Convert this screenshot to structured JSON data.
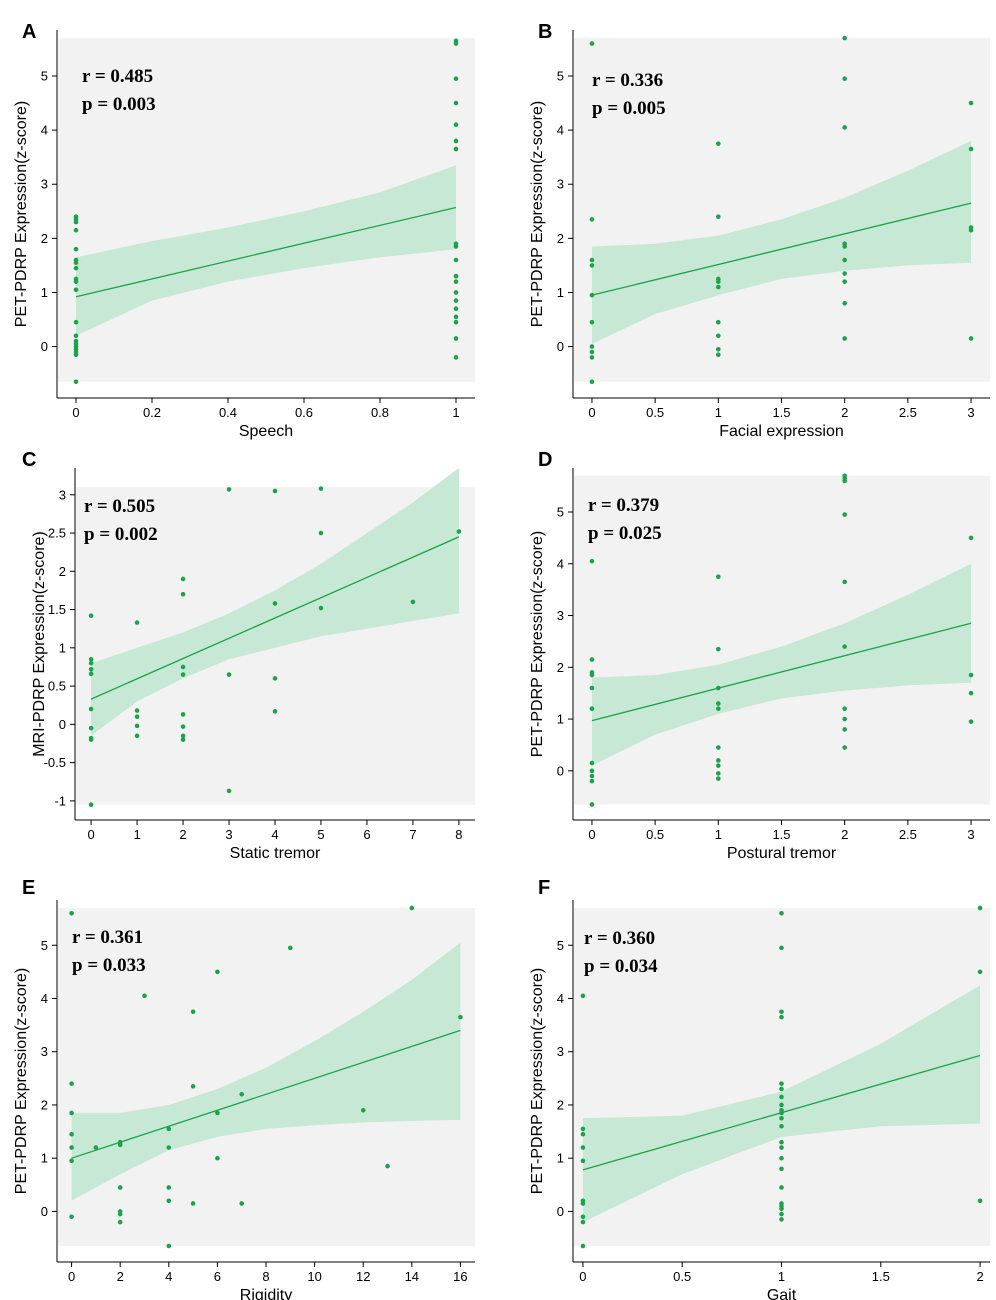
{
  "chart_data": [
    {
      "id": "A",
      "type": "scatter",
      "xlabel": "Speech",
      "ylabel": "PET-PDRP Expression(z-score)",
      "xlim": [
        -0.05,
        1.05
      ],
      "ylim": [
        -0.95,
        5.85
      ],
      "xticks": [
        0,
        0.2,
        0.4,
        0.6,
        0.8,
        1
      ],
      "xtick_labels": [
        "0",
        "0.2",
        "0.4",
        "0.6",
        "0.8",
        "1"
      ],
      "yticks": [
        0,
        1,
        2,
        3,
        4,
        5
      ],
      "ytick_labels": [
        "0",
        "1",
        "2",
        "3",
        "4",
        "5"
      ],
      "bg_range": [
        -0.65,
        5.7
      ],
      "r_text": "r = 0.485",
      "p_text": "p = 0.003",
      "fit": {
        "x": [
          0,
          1
        ],
        "y": [
          0.92,
          2.57
        ]
      },
      "ci": {
        "x": [
          0,
          0.2,
          0.4,
          0.6,
          0.8,
          1
        ],
        "upper": [
          1.65,
          1.95,
          2.2,
          2.5,
          2.85,
          3.35
        ],
        "lower": [
          0.2,
          0.85,
          1.2,
          1.45,
          1.65,
          1.8
        ]
      },
      "points": {
        "x": [
          0,
          0,
          0,
          0,
          0,
          0,
          0,
          0,
          0,
          0,
          0,
          0,
          0,
          0,
          0,
          0,
          0,
          0,
          0,
          0,
          1,
          1,
          1,
          1,
          1,
          1,
          1,
          1,
          1,
          1,
          1,
          1,
          1,
          1,
          1,
          1,
          1,
          1,
          1
        ],
        "y": [
          2.4,
          2.3,
          2.15,
          1.8,
          1.55,
          1.45,
          1.25,
          1.2,
          1.05,
          0.45,
          0.2,
          0.1,
          0.05,
          0,
          -0.05,
          -0.1,
          -0.15,
          -0.65,
          2.35,
          1.6,
          5.65,
          5.6,
          4.95,
          4.5,
          4.1,
          3.8,
          3.65,
          1.9,
          1.85,
          1.6,
          1.3,
          1,
          0.85,
          0.7,
          0.45,
          0.15,
          -0.2,
          1.2,
          0.55
        ]
      }
    },
    {
      "id": "B",
      "type": "scatter",
      "xlabel": "Facial expression",
      "ylabel": "PET-PDRP Expression(z-score)",
      "xlim": [
        -0.15,
        3.15
      ],
      "ylim": [
        -0.95,
        5.85
      ],
      "xticks": [
        0,
        0.5,
        1,
        1.5,
        2,
        2.5,
        3
      ],
      "xtick_labels": [
        "0",
        "0.5",
        "1",
        "1.5",
        "2",
        "2.5",
        "3"
      ],
      "yticks": [
        0,
        1,
        2,
        3,
        4,
        5
      ],
      "ytick_labels": [
        "0",
        "1",
        "2",
        "3",
        "4",
        "5"
      ],
      "bg_range": [
        -0.65,
        5.7
      ],
      "r_text": "r = 0.336",
      "p_text": "p = 0.005",
      "fit": {
        "x": [
          0,
          3
        ],
        "y": [
          0.95,
          2.65
        ]
      },
      "ci": {
        "x": [
          0,
          0.5,
          1,
          1.5,
          2,
          2.5,
          3
        ],
        "upper": [
          1.85,
          1.9,
          2.05,
          2.35,
          2.75,
          3.25,
          3.8
        ],
        "lower": [
          0.05,
          0.6,
          0.95,
          1.25,
          1.4,
          1.5,
          1.55
        ]
      },
      "points": {
        "x": [
          0,
          0,
          0,
          0,
          0,
          0,
          0,
          0,
          0,
          0,
          1,
          1,
          1,
          1,
          1,
          1,
          1,
          1,
          1,
          2,
          2,
          2,
          2,
          2,
          2,
          2,
          2,
          2,
          2,
          3,
          3,
          3,
          3,
          3
        ],
        "y": [
          5.6,
          2.35,
          1.6,
          1.5,
          0.95,
          0.45,
          0,
          -0.1,
          -0.2,
          -0.65,
          3.75,
          2.4,
          1.25,
          1.2,
          1.1,
          0.45,
          0.2,
          -0.05,
          -0.15,
          5.7,
          4.95,
          4.05,
          1.9,
          1.85,
          1.6,
          1.35,
          1.2,
          0.8,
          0.15,
          4.5,
          3.65,
          2.2,
          2.15,
          0.15
        ]
      }
    },
    {
      "id": "C",
      "type": "scatter",
      "xlabel": "Static tremor",
      "ylabel": "MRI-PDRP Expression(z-score)",
      "xlim": [
        -0.35,
        8.35
      ],
      "ylim": [
        -1.25,
        3.35
      ],
      "xticks": [
        0,
        1,
        2,
        3,
        4,
        5,
        6,
        7,
        8
      ],
      "xtick_labels": [
        "0",
        "1",
        "2",
        "3",
        "4",
        "5",
        "6",
        "7",
        "8"
      ],
      "yticks": [
        -1,
        -0.5,
        0,
        0.5,
        1,
        1.5,
        2,
        2.5,
        3
      ],
      "ytick_labels": [
        "-1",
        "-0.5",
        "0",
        "0.5",
        "1",
        "1.5",
        "2",
        "2.5",
        "3"
      ],
      "bg_range": [
        -1.05,
        3.1
      ],
      "r_text": "r = 0.505",
      "p_text": "p = 0.002",
      "fit": {
        "x": [
          0,
          8
        ],
        "y": [
          0.33,
          2.45
        ]
      },
      "ci": {
        "x": [
          0,
          1,
          2,
          3,
          4,
          5,
          6,
          7,
          8
        ],
        "upper": [
          0.8,
          1.0,
          1.2,
          1.45,
          1.75,
          2.1,
          2.5,
          2.9,
          3.35
        ],
        "lower": [
          -0.15,
          0.3,
          0.6,
          0.85,
          1.0,
          1.15,
          1.25,
          1.35,
          1.45
        ]
      },
      "points": {
        "x": [
          0,
          0,
          0,
          0,
          0,
          0,
          0,
          0,
          0,
          0,
          1,
          1,
          1,
          1,
          1,
          2,
          2,
          2,
          2,
          2,
          2,
          2,
          2,
          3,
          3,
          3,
          4,
          4,
          4,
          4,
          5,
          5,
          5,
          7,
          8
        ],
        "y": [
          1.42,
          0.85,
          0.8,
          0.72,
          0.66,
          0.2,
          -0.05,
          -0.18,
          -0.2,
          -1.05,
          1.33,
          0.18,
          -0.02,
          -0.15,
          0.1,
          1.9,
          1.7,
          0.75,
          0.65,
          0.13,
          -0.03,
          -0.15,
          -0.2,
          3.07,
          0.65,
          -0.87,
          3.05,
          1.58,
          0.6,
          0.17,
          3.08,
          2.5,
          1.52,
          1.6,
          2.52
        ]
      }
    },
    {
      "id": "D",
      "type": "scatter",
      "xlabel": "Postural tremor",
      "ylabel": "PET-PDRP Expression(z-score)",
      "xlim": [
        -0.15,
        3.15
      ],
      "ylim": [
        -0.95,
        5.85
      ],
      "xticks": [
        0,
        0.5,
        1,
        1.5,
        2,
        2.5,
        3
      ],
      "xtick_labels": [
        "0",
        "0.5",
        "1",
        "1.5",
        "2",
        "2.5",
        "3"
      ],
      "yticks": [
        0,
        1,
        2,
        3,
        4,
        5
      ],
      "ytick_labels": [
        "0",
        "1",
        "2",
        "3",
        "4",
        "5"
      ],
      "bg_range": [
        -0.65,
        5.7
      ],
      "r_text": "r = 0.379",
      "p_text": "p = 0.025",
      "fit": {
        "x": [
          0,
          3
        ],
        "y": [
          0.97,
          2.85
        ]
      },
      "ci": {
        "x": [
          0,
          0.5,
          1,
          1.5,
          2,
          2.5,
          3
        ],
        "upper": [
          1.8,
          1.85,
          2.05,
          2.4,
          2.85,
          3.4,
          4.0
        ],
        "lower": [
          0.1,
          0.7,
          1.1,
          1.4,
          1.55,
          1.65,
          1.7
        ]
      },
      "points": {
        "x": [
          0,
          0,
          0,
          0,
          0,
          0,
          0,
          0,
          0,
          0,
          0,
          1,
          1,
          1,
          1,
          1,
          1,
          1,
          1,
          1,
          1,
          2,
          2,
          2,
          2,
          2,
          2,
          2,
          2,
          2,
          2,
          3,
          3,
          3,
          3
        ],
        "y": [
          4.05,
          2.15,
          1.9,
          1.85,
          1.6,
          1.2,
          0.15,
          0,
          -0.1,
          -0.2,
          -0.65,
          3.75,
          2.35,
          1.6,
          1.3,
          1.2,
          0.45,
          0.2,
          -0.05,
          -0.15,
          0.1,
          5.7,
          5.65,
          4.95,
          3.65,
          2.4,
          1.2,
          1.0,
          0.8,
          0.45,
          5.6,
          4.5,
          1.85,
          1.5,
          0.95
        ]
      }
    },
    {
      "id": "E",
      "type": "scatter",
      "xlabel": "Rigidity",
      "ylabel": "PET-PDRP Expression(z-score)",
      "xlim": [
        -0.6,
        16.6
      ],
      "ylim": [
        -0.95,
        5.85
      ],
      "xticks": [
        0,
        2,
        4,
        6,
        8,
        10,
        12,
        14,
        16
      ],
      "xtick_labels": [
        "0",
        "2",
        "4",
        "6",
        "8",
        "10",
        "12",
        "14",
        "16"
      ],
      "yticks": [
        0,
        1,
        2,
        3,
        4,
        5
      ],
      "ytick_labels": [
        "0",
        "1",
        "2",
        "3",
        "4",
        "5"
      ],
      "bg_range": [
        -0.65,
        5.7
      ],
      "r_text": "r = 0.361",
      "p_text": "p = 0.033",
      "fit": {
        "x": [
          0,
          16
        ],
        "y": [
          1.0,
          3.4
        ]
      },
      "ci": {
        "x": [
          0,
          2,
          4,
          6,
          8,
          10,
          12,
          14,
          16
        ],
        "upper": [
          1.85,
          1.85,
          2.0,
          2.3,
          2.7,
          3.2,
          3.75,
          4.35,
          5.05
        ],
        "lower": [
          0.2,
          0.7,
          1.15,
          1.4,
          1.55,
          1.62,
          1.67,
          1.7,
          1.72
        ]
      },
      "points": {
        "x": [
          0,
          0,
          0,
          0,
          0,
          0,
          0,
          1,
          2,
          2,
          2,
          2,
          2,
          2,
          3,
          4,
          4,
          4,
          4,
          4,
          5,
          5,
          5,
          6,
          6,
          6,
          7,
          7,
          9,
          12,
          13,
          14,
          16
        ],
        "y": [
          5.6,
          2.4,
          1.85,
          1.45,
          1.2,
          0.95,
          -0.1,
          1.2,
          1.3,
          1.25,
          0.45,
          0,
          -0.05,
          -0.2,
          4.05,
          1.55,
          1.2,
          0.45,
          0.2,
          -0.65,
          3.75,
          2.35,
          0.15,
          4.5,
          1.85,
          1.0,
          2.2,
          0.15,
          4.95,
          1.9,
          0.85,
          5.7,
          3.65
        ]
      }
    },
    {
      "id": "F",
      "type": "scatter",
      "xlabel": "Gait",
      "ylabel": "PET-PDRP Expression(z-score)",
      "xlim": [
        -0.05,
        2.05
      ],
      "ylim": [
        -0.95,
        5.85
      ],
      "xticks": [
        0,
        0.5,
        1,
        1.5,
        2
      ],
      "xtick_labels": [
        "0",
        "0.5",
        "1",
        "1.5",
        "2"
      ],
      "yticks": [
        0,
        1,
        2,
        3,
        4,
        5
      ],
      "ytick_labels": [
        "0",
        "1",
        "2",
        "3",
        "4",
        "5"
      ],
      "bg_range": [
        -0.65,
        5.7
      ],
      "r_text": "r = 0.360",
      "p_text": "p = 0.034",
      "fit": {
        "x": [
          0,
          2
        ],
        "y": [
          0.78,
          2.93
        ]
      },
      "ci": {
        "x": [
          0,
          0.5,
          1,
          1.5,
          2
        ],
        "upper": [
          1.75,
          1.8,
          2.25,
          3.15,
          4.25
        ],
        "lower": [
          -0.2,
          0.7,
          1.4,
          1.6,
          1.65
        ]
      },
      "points": {
        "x": [
          0,
          0,
          0,
          0,
          0,
          0,
          0,
          0,
          0,
          0,
          1,
          1,
          1,
          1,
          1,
          1,
          1,
          1,
          1,
          1,
          1,
          1,
          1,
          1,
          1,
          1,
          1,
          1,
          1,
          1,
          1,
          1,
          2,
          2,
          2
        ],
        "y": [
          4.05,
          1.55,
          1.45,
          1.2,
          0.95,
          0.15,
          -0.1,
          -0.2,
          -0.65,
          0.2,
          5.6,
          4.95,
          3.75,
          3.65,
          2.4,
          2.3,
          2.15,
          1.9,
          1.85,
          1.6,
          1.3,
          1.2,
          1.0,
          0.8,
          0.45,
          0.15,
          0.05,
          -0.05,
          -0.15,
          2.0,
          1.75,
          0.1,
          5.7,
          4.5,
          0.2
        ]
      }
    }
  ]
}
